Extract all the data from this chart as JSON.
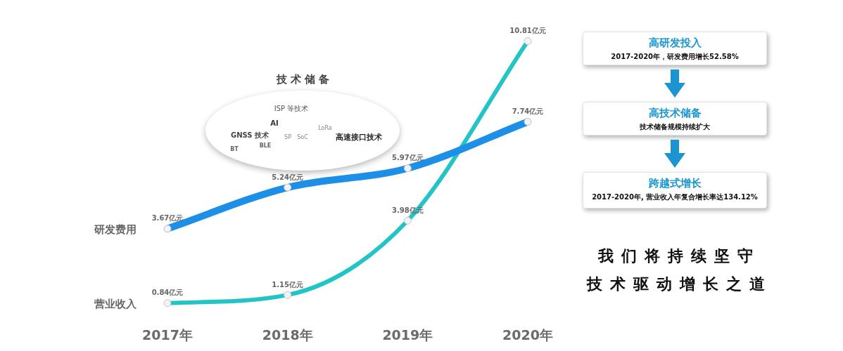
{
  "chart_data": [
    {
      "type": "line",
      "categories": [
        "2017年",
        "2018年",
        "2019年",
        "2020年"
      ],
      "series": [
        {
          "name": "研发费用",
          "color": "#1e8fe6",
          "values": [
            3.67,
            5.24,
            5.97,
            7.74
          ],
          "value_labels": [
            "3.67亿元",
            "5.24亿元",
            "5.97亿元",
            "7.74亿元"
          ]
        },
        {
          "name": "营业收入",
          "color": "#22c4c6",
          "values": [
            0.84,
            1.15,
            3.98,
            10.81
          ],
          "value_labels": [
            "0.84亿元",
            "1.15亿元",
            "3.98亿元",
            "10.81亿元"
          ]
        }
      ],
      "marker": "circle",
      "line_style": "solid",
      "tick_labels": "x"
    },
    {
      "type": "other",
      "title": "技术储备",
      "annotations": [
        "ISP 等技术",
        "AI",
        "LoRa",
        "GNSS 技术",
        "SP",
        "SoC",
        "高速接口技术",
        "BLE",
        "BT"
      ]
    },
    {
      "type": "other",
      "annotations": [
        "高研发投入",
        "2017-2020年，研发费用增长52.58%",
        "高技术储备",
        "技术储备规模持续扩大",
        "跨越式增长",
        "2017-2020年, 营业收入年复合增长率达134.12%"
      ]
    },
    {
      "type": "other",
      "annotations": [
        "我们将持续坚守",
        "技术驱动增长之道"
      ]
    }
  ]
}
